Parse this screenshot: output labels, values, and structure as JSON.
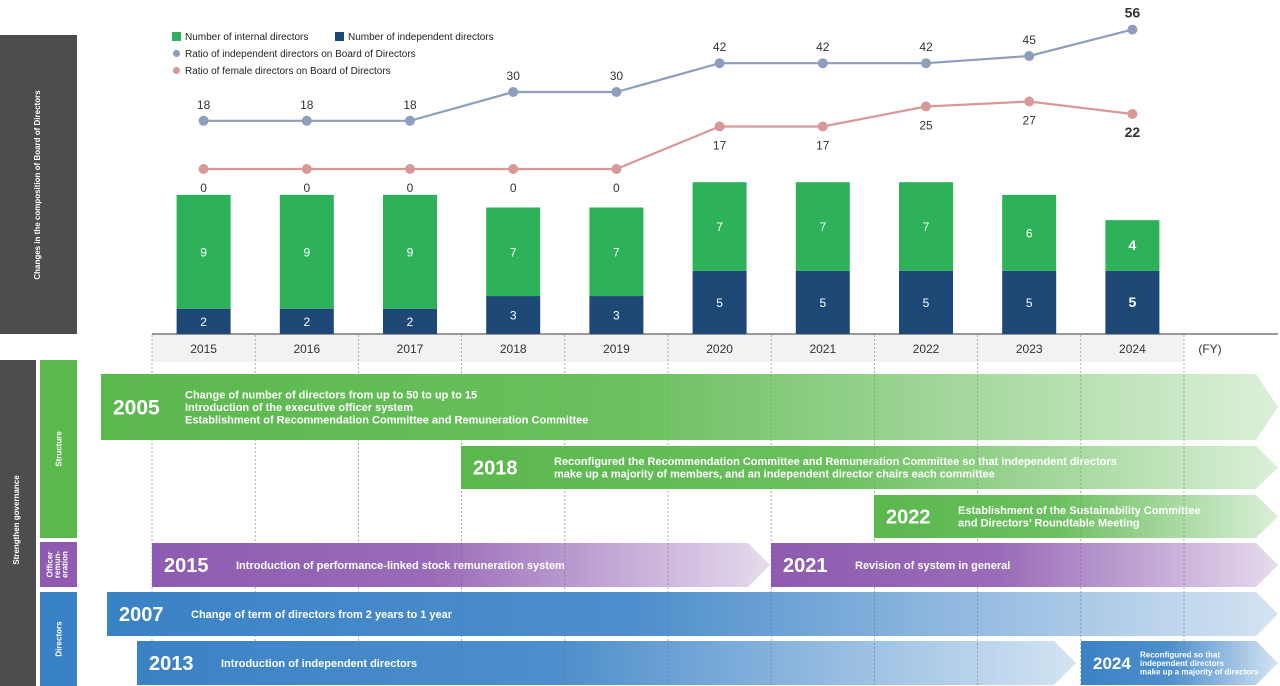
{
  "chart_data": {
    "type": "bar",
    "side_title": "Changes in the composition of Board of Directors",
    "categories": [
      "2015",
      "2016",
      "2017",
      "2018",
      "2019",
      "2020",
      "2021",
      "2022",
      "2023",
      "2024"
    ],
    "x_unit": "(FY)",
    "series": [
      {
        "name": "Number of internal directors",
        "type": "stacked-bar",
        "values": [
          9,
          9,
          9,
          7,
          7,
          7,
          7,
          7,
          6,
          4
        ]
      },
      {
        "name": "Number of independent directors",
        "type": "stacked-bar",
        "values": [
          2,
          2,
          2,
          3,
          3,
          5,
          5,
          5,
          5,
          5
        ]
      },
      {
        "name": "Ratio of independent directors on Board of Directors",
        "type": "line",
        "values": [
          18,
          18,
          18,
          30,
          30,
          42,
          42,
          42,
          45,
          56
        ]
      },
      {
        "name": "Ratio of female directors on Board of Directors",
        "type": "line",
        "values": [
          0,
          0,
          0,
          0,
          0,
          17,
          17,
          25,
          27,
          22
        ]
      }
    ],
    "colors": {
      "internal": "#2db25a",
      "independent": "#1d4876",
      "independent_ratio": "#8e9fbd",
      "female_ratio": "#d89898",
      "structure": "#5bb84d",
      "remuneration": "#8e5bb0",
      "directors": "#3a82c6",
      "side_dark": "#4d4d4d"
    }
  },
  "governance": {
    "side_title": "Strengthen governance",
    "groups": [
      {
        "key": "structure",
        "label": "Structure"
      },
      {
        "key": "remuneration",
        "label": "Officer remuneration"
      },
      {
        "key": "directors",
        "label": "Directors"
      }
    ],
    "arrows": [
      {
        "group": "structure",
        "year": "2005",
        "start": "2014",
        "end": "end",
        "lines": [
          "Change of number of directors from up to 50 to up to 15",
          "Introduction of the executive officer system",
          "Establishment of Recommendation Committee and Remuneration Committee"
        ]
      },
      {
        "group": "structure",
        "year": "2018",
        "start": "2018",
        "end": "end",
        "lines": [
          "Reconfigured the Recommendation Committee and Remuneration Committee so that independent directors",
          "make up a majority of members, and an independent director chairs each committee"
        ]
      },
      {
        "group": "structure",
        "year": "2022",
        "start": "2022",
        "end": "end",
        "lines": [
          "Establishment of the Sustainability Committee",
          "and Directors’ Roundtable Meeting"
        ]
      },
      {
        "group": "remuneration",
        "year": "2015",
        "start": "2015",
        "end": "2020",
        "lines": [
          "Introduction of performance-linked stock remuneration system"
        ]
      },
      {
        "group": "remuneration",
        "year": "2021",
        "start": "2021",
        "end": "end",
        "lines": [
          "Revision of system in general"
        ]
      },
      {
        "group": "directors",
        "year": "2007",
        "start": "2014",
        "end": "end",
        "lines": [
          "Change of term of directors from 2 years to 1 year"
        ]
      },
      {
        "group": "directors",
        "year": "2013",
        "start": "2014",
        "end": "2023",
        "lines": [
          "Introduction of independent directors"
        ]
      },
      {
        "group": "directors",
        "year": "2024",
        "start": "2024",
        "end": "end",
        "lines": [
          "Reconfigured so that",
          "independent directors",
          "make up a majority of directors"
        ]
      }
    ]
  }
}
